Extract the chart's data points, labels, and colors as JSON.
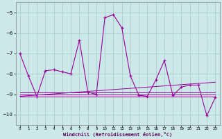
{
  "xlabel": "Windchill (Refroidissement éolien,°C)",
  "x_values": [
    0,
    1,
    2,
    3,
    4,
    5,
    6,
    7,
    8,
    9,
    10,
    11,
    12,
    13,
    14,
    15,
    16,
    17,
    18,
    19,
    20,
    21,
    22,
    23
  ],
  "main_line": [
    -7.0,
    -8.1,
    -9.1,
    -7.85,
    -7.8,
    -7.9,
    -8.0,
    -6.35,
    -8.9,
    -9.0,
    -5.25,
    -5.1,
    -5.75,
    -8.1,
    -9.05,
    -9.1,
    -8.3,
    -7.35,
    -9.05,
    -8.65,
    -8.55,
    -8.55,
    -10.05,
    -9.15
  ],
  "flat_line1": [
    -9.1,
    -9.1,
    -9.1,
    -9.1,
    -9.1,
    -9.1,
    -9.1,
    -9.1,
    -9.1,
    -9.1,
    -9.1,
    -9.1,
    -9.1,
    -9.1,
    -9.1,
    -9.1,
    -9.1,
    -9.1,
    -9.1,
    -9.1,
    -9.1,
    -9.1,
    -9.1,
    -9.1
  ],
  "flat_line2": [
    -9.0,
    -9.0,
    -9.0,
    -9.0,
    -9.0,
    -9.0,
    -9.0,
    -9.0,
    -9.0,
    -9.0,
    -9.0,
    -9.0,
    -9.0,
    -9.0,
    -9.0,
    -9.0,
    -9.0,
    -9.0,
    -9.0,
    -9.0,
    -9.0,
    -9.0,
    -9.0,
    -9.0
  ],
  "flat_line3": [
    -8.9,
    -8.9,
    -8.9,
    -8.9,
    -8.9,
    -8.9,
    -8.9,
    -8.9,
    -8.9,
    -8.9,
    -8.9,
    -8.9,
    -8.9,
    -8.9,
    -8.9,
    -8.9,
    -8.9,
    -8.9,
    -8.9,
    -8.9,
    -8.9,
    -8.9,
    -8.9,
    -8.9
  ],
  "trend_line1": [
    -9.1,
    -9.07,
    -9.04,
    -9.01,
    -8.98,
    -8.95,
    -8.92,
    -8.89,
    -8.86,
    -8.83,
    -8.8,
    -8.77,
    -8.74,
    -8.71,
    -8.68,
    -8.65,
    -8.62,
    -8.59,
    -8.56,
    -8.53,
    -8.5,
    -8.47,
    -8.44,
    -8.41
  ],
  "line_color": "#990099",
  "bg_color": "#cce8e8",
  "grid_color": "#aacece",
  "ylim": [
    -10.5,
    -4.5
  ],
  "yticks": [
    -10,
    -9,
    -8,
    -7,
    -6,
    -5
  ],
  "xticks": [
    0,
    1,
    2,
    3,
    4,
    5,
    6,
    7,
    8,
    9,
    10,
    11,
    12,
    13,
    14,
    15,
    16,
    17,
    18,
    19,
    20,
    21,
    22,
    23
  ]
}
